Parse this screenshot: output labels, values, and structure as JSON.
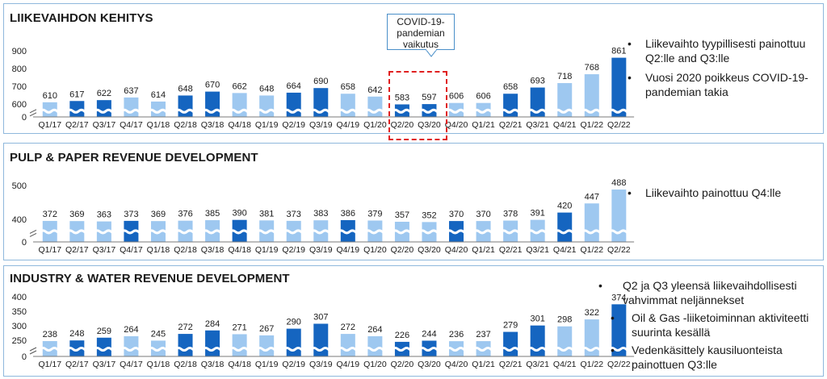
{
  "colors": {
    "dark": "#1565c0",
    "light": "#9ec8f0",
    "panel_border": "#8fb8dc",
    "highlight": "#e02020"
  },
  "annotation": {
    "covid_label": "COVID-19-\npandemian\nvaikutus"
  },
  "panels": [
    {
      "title": "LIIKEVAIHDON KEHITYS",
      "bullets": [
        {
          "text": "Liikevaihto tyypillisesti painottuu Q2:lle and Q3:lle",
          "level": 1
        },
        {
          "text": "Vuosi 2020 poikkeus COVID-19-pandemian takia",
          "level": 1
        }
      ]
    },
    {
      "title": "PULP & PAPER REVENUE DEVELOPMENT",
      "bullets": [
        {
          "text": "Liikevaihto painottuu Q4:lle",
          "level": 1
        }
      ]
    },
    {
      "title": "INDUSTRY & WATER REVENUE DEVELOPMENT",
      "bullets": [
        {
          "text": "Q2 ja Q3 yleensä liikevaihdollisesti vahvimmat neljännekset",
          "level": 1
        },
        {
          "text": "Oil & Gas -liiketoiminnan aktiviteetti suurinta kesällä",
          "level": 2
        },
        {
          "text": "Vedenkäsittely kausiluonteista painottuen Q3:lle",
          "level": 2
        }
      ]
    }
  ],
  "chart_data": [
    {
      "type": "bar",
      "title": "LIIKEVAIHDON KEHITYS",
      "categories": [
        "Q1/17",
        "Q2/17",
        "Q3/17",
        "Q4/17",
        "Q1/18",
        "Q2/18",
        "Q3/18",
        "Q4/18",
        "Q1/19",
        "Q2/19",
        "Q3/19",
        "Q4/19",
        "Q1/20",
        "Q2/20",
        "Q3/20",
        "Q4/20",
        "Q1/21",
        "Q2/21",
        "Q3/21",
        "Q4/21",
        "Q1/22",
        "Q2/22"
      ],
      "values": [
        610,
        617,
        622,
        637,
        614,
        648,
        670,
        662,
        648,
        664,
        690,
        658,
        642,
        583,
        597,
        606,
        606,
        658,
        693,
        718,
        768,
        861
      ],
      "shade": [
        "light",
        "dark",
        "dark",
        "light",
        "light",
        "dark",
        "dark",
        "light",
        "light",
        "dark",
        "dark",
        "light",
        "light",
        "dark",
        "dark",
        "light",
        "light",
        "dark",
        "dark",
        "light",
        "light",
        "dark"
      ],
      "yticks": [
        0,
        600,
        700,
        800,
        900
      ],
      "ylim": [
        0,
        900
      ],
      "broken_axis": true,
      "highlight_categories": [
        "Q2/20",
        "Q3/20"
      ]
    },
    {
      "type": "bar",
      "title": "PULP & PAPER REVENUE DEVELOPMENT",
      "categories": [
        "Q1/17",
        "Q2/17",
        "Q3/17",
        "Q4/17",
        "Q1/18",
        "Q2/18",
        "Q3/18",
        "Q4/18",
        "Q1/19",
        "Q2/19",
        "Q3/19",
        "Q4/19",
        "Q1/20",
        "Q2/20",
        "Q3/20",
        "Q4/20",
        "Q1/21",
        "Q2/21",
        "Q3/21",
        "Q4/21",
        "Q1/22",
        "Q2/22"
      ],
      "values": [
        372,
        369,
        363,
        373,
        369,
        376,
        385,
        390,
        381,
        373,
        383,
        386,
        379,
        357,
        352,
        370,
        370,
        378,
        391,
        420,
        447,
        488
      ],
      "shade": [
        "light",
        "light",
        "light",
        "dark",
        "light",
        "light",
        "light",
        "dark",
        "light",
        "light",
        "light",
        "dark",
        "light",
        "light",
        "light",
        "dark",
        "light",
        "light",
        "light",
        "dark",
        "light",
        "light"
      ],
      "yticks": [
        0,
        400,
        500
      ],
      "ylim": [
        0,
        500
      ],
      "broken_axis": true
    },
    {
      "type": "bar",
      "title": "INDUSTRY & WATER REVENUE DEVELOPMENT",
      "categories": [
        "Q1/17",
        "Q2/17",
        "Q3/17",
        "Q4/17",
        "Q1/18",
        "Q2/18",
        "Q3/18",
        "Q4/18",
        "Q1/19",
        "Q2/19",
        "Q3/19",
        "Q4/19",
        "Q1/20",
        "Q2/20",
        "Q3/20",
        "Q4/20",
        "Q1/21",
        "Q2/21",
        "Q3/21",
        "Q4/21",
        "Q1/22",
        "Q2/22"
      ],
      "values": [
        238,
        248,
        259,
        264,
        245,
        272,
        284,
        271,
        267,
        290,
        307,
        272,
        264,
        226,
        244,
        236,
        237,
        279,
        301,
        298,
        322,
        374
      ],
      "shade": [
        "light",
        "dark",
        "dark",
        "light",
        "light",
        "dark",
        "dark",
        "light",
        "light",
        "dark",
        "dark",
        "light",
        "light",
        "dark",
        "dark",
        "light",
        "light",
        "dark",
        "dark",
        "light",
        "light",
        "dark"
      ],
      "yticks": [
        0,
        250,
        300,
        350,
        400
      ],
      "ylim": [
        0,
        400
      ],
      "broken_axis": true
    }
  ]
}
